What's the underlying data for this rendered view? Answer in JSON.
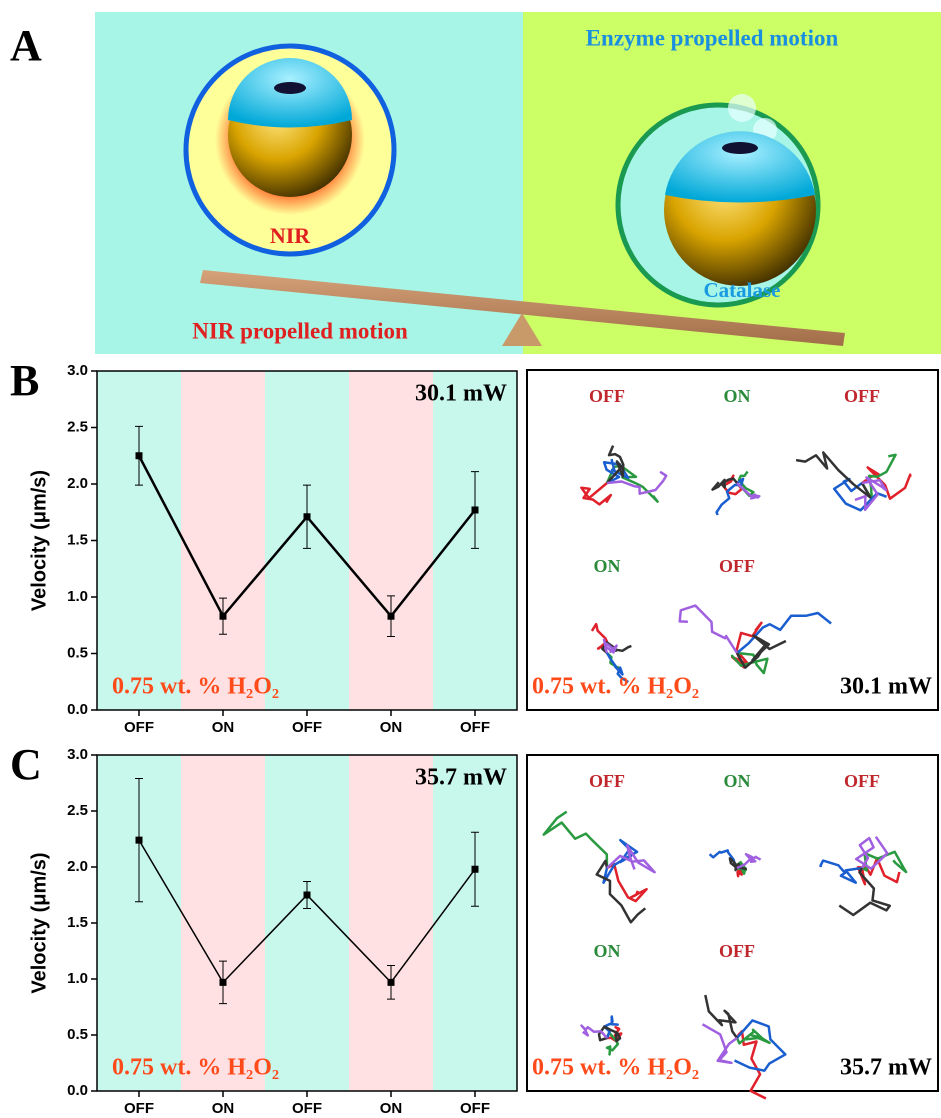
{
  "panel_a": {
    "letter": "A",
    "enzyme_title": "Enzyme propelled motion",
    "nir_label": "NIR",
    "catalase_label": "Catalase",
    "nir_title": "NIR propelled motion"
  },
  "chart_data": [
    {
      "type": "line",
      "letter": "B",
      "y_label": "Velocity (μm/s)",
      "categories": [
        "OFF",
        "ON",
        "OFF",
        "ON",
        "OFF"
      ],
      "band_colors": [
        "#c8f7ec",
        "#ffe1e3",
        "#c8f7ec",
        "#ffe1e3",
        "#c8f7ec"
      ],
      "series": [
        {
          "color": "#000000",
          "values": [
            2.25,
            0.83,
            1.71,
            0.83,
            1.77
          ],
          "errors": [
            0.26,
            0.16,
            0.28,
            0.18,
            0.34
          ]
        }
      ],
      "ylim": [
        0,
        3
      ],
      "yticks": [
        {
          "value": 0,
          "label": "0.0"
        },
        0.5,
        {
          "value": 1,
          "label": "1.0"
        },
        1.5,
        {
          "value": 2,
          "label": "2.0"
        },
        2.5,
        {
          "value": 3,
          "label": "3.0"
        }
      ],
      "power_label": "30.1 mW",
      "condition_label": "0.75 wt. % H₂O₂"
    },
    {
      "type": "line",
      "letter": "C",
      "y_label": "Velocity (μm/s)",
      "categories": [
        "OFF",
        "ON",
        "OFF",
        "ON",
        "OFF"
      ],
      "band_colors": [
        "#c8f7ec",
        "#ffe1e3",
        "#c8f7ec",
        "#ffe1e3",
        "#c8f7ec"
      ],
      "series": [
        {
          "color": "#000000",
          "values": [
            2.24,
            0.97,
            1.75,
            0.97,
            1.98
          ],
          "errors": [
            0.55,
            0.19,
            0.12,
            0.15,
            0.33
          ]
        }
      ],
      "ylim": [
        0,
        3
      ],
      "yticks": [
        {
          "value": 0,
          "label": "0.0"
        },
        0.5,
        {
          "value": 1,
          "label": "1.0"
        },
        1.5,
        {
          "value": 2,
          "label": "2.0"
        },
        2.5,
        {
          "value": 3,
          "label": "3.0"
        }
      ],
      "power_label": "35.7 mW",
      "condition_label": "0.75 wt. % H₂O₂"
    }
  ],
  "trajectory_panels": [
    {
      "labels": [
        "OFF",
        "ON",
        "OFF",
        "ON",
        "OFF"
      ],
      "condition_label": "0.75 wt. % H₂O₂",
      "power_label": "30.1 mW"
    },
    {
      "labels": [
        "OFF",
        "ON",
        "OFF",
        "ON",
        "OFF"
      ],
      "condition_label": "0.75 wt. % H₂O₂",
      "power_label": "35.7 mW"
    }
  ]
}
